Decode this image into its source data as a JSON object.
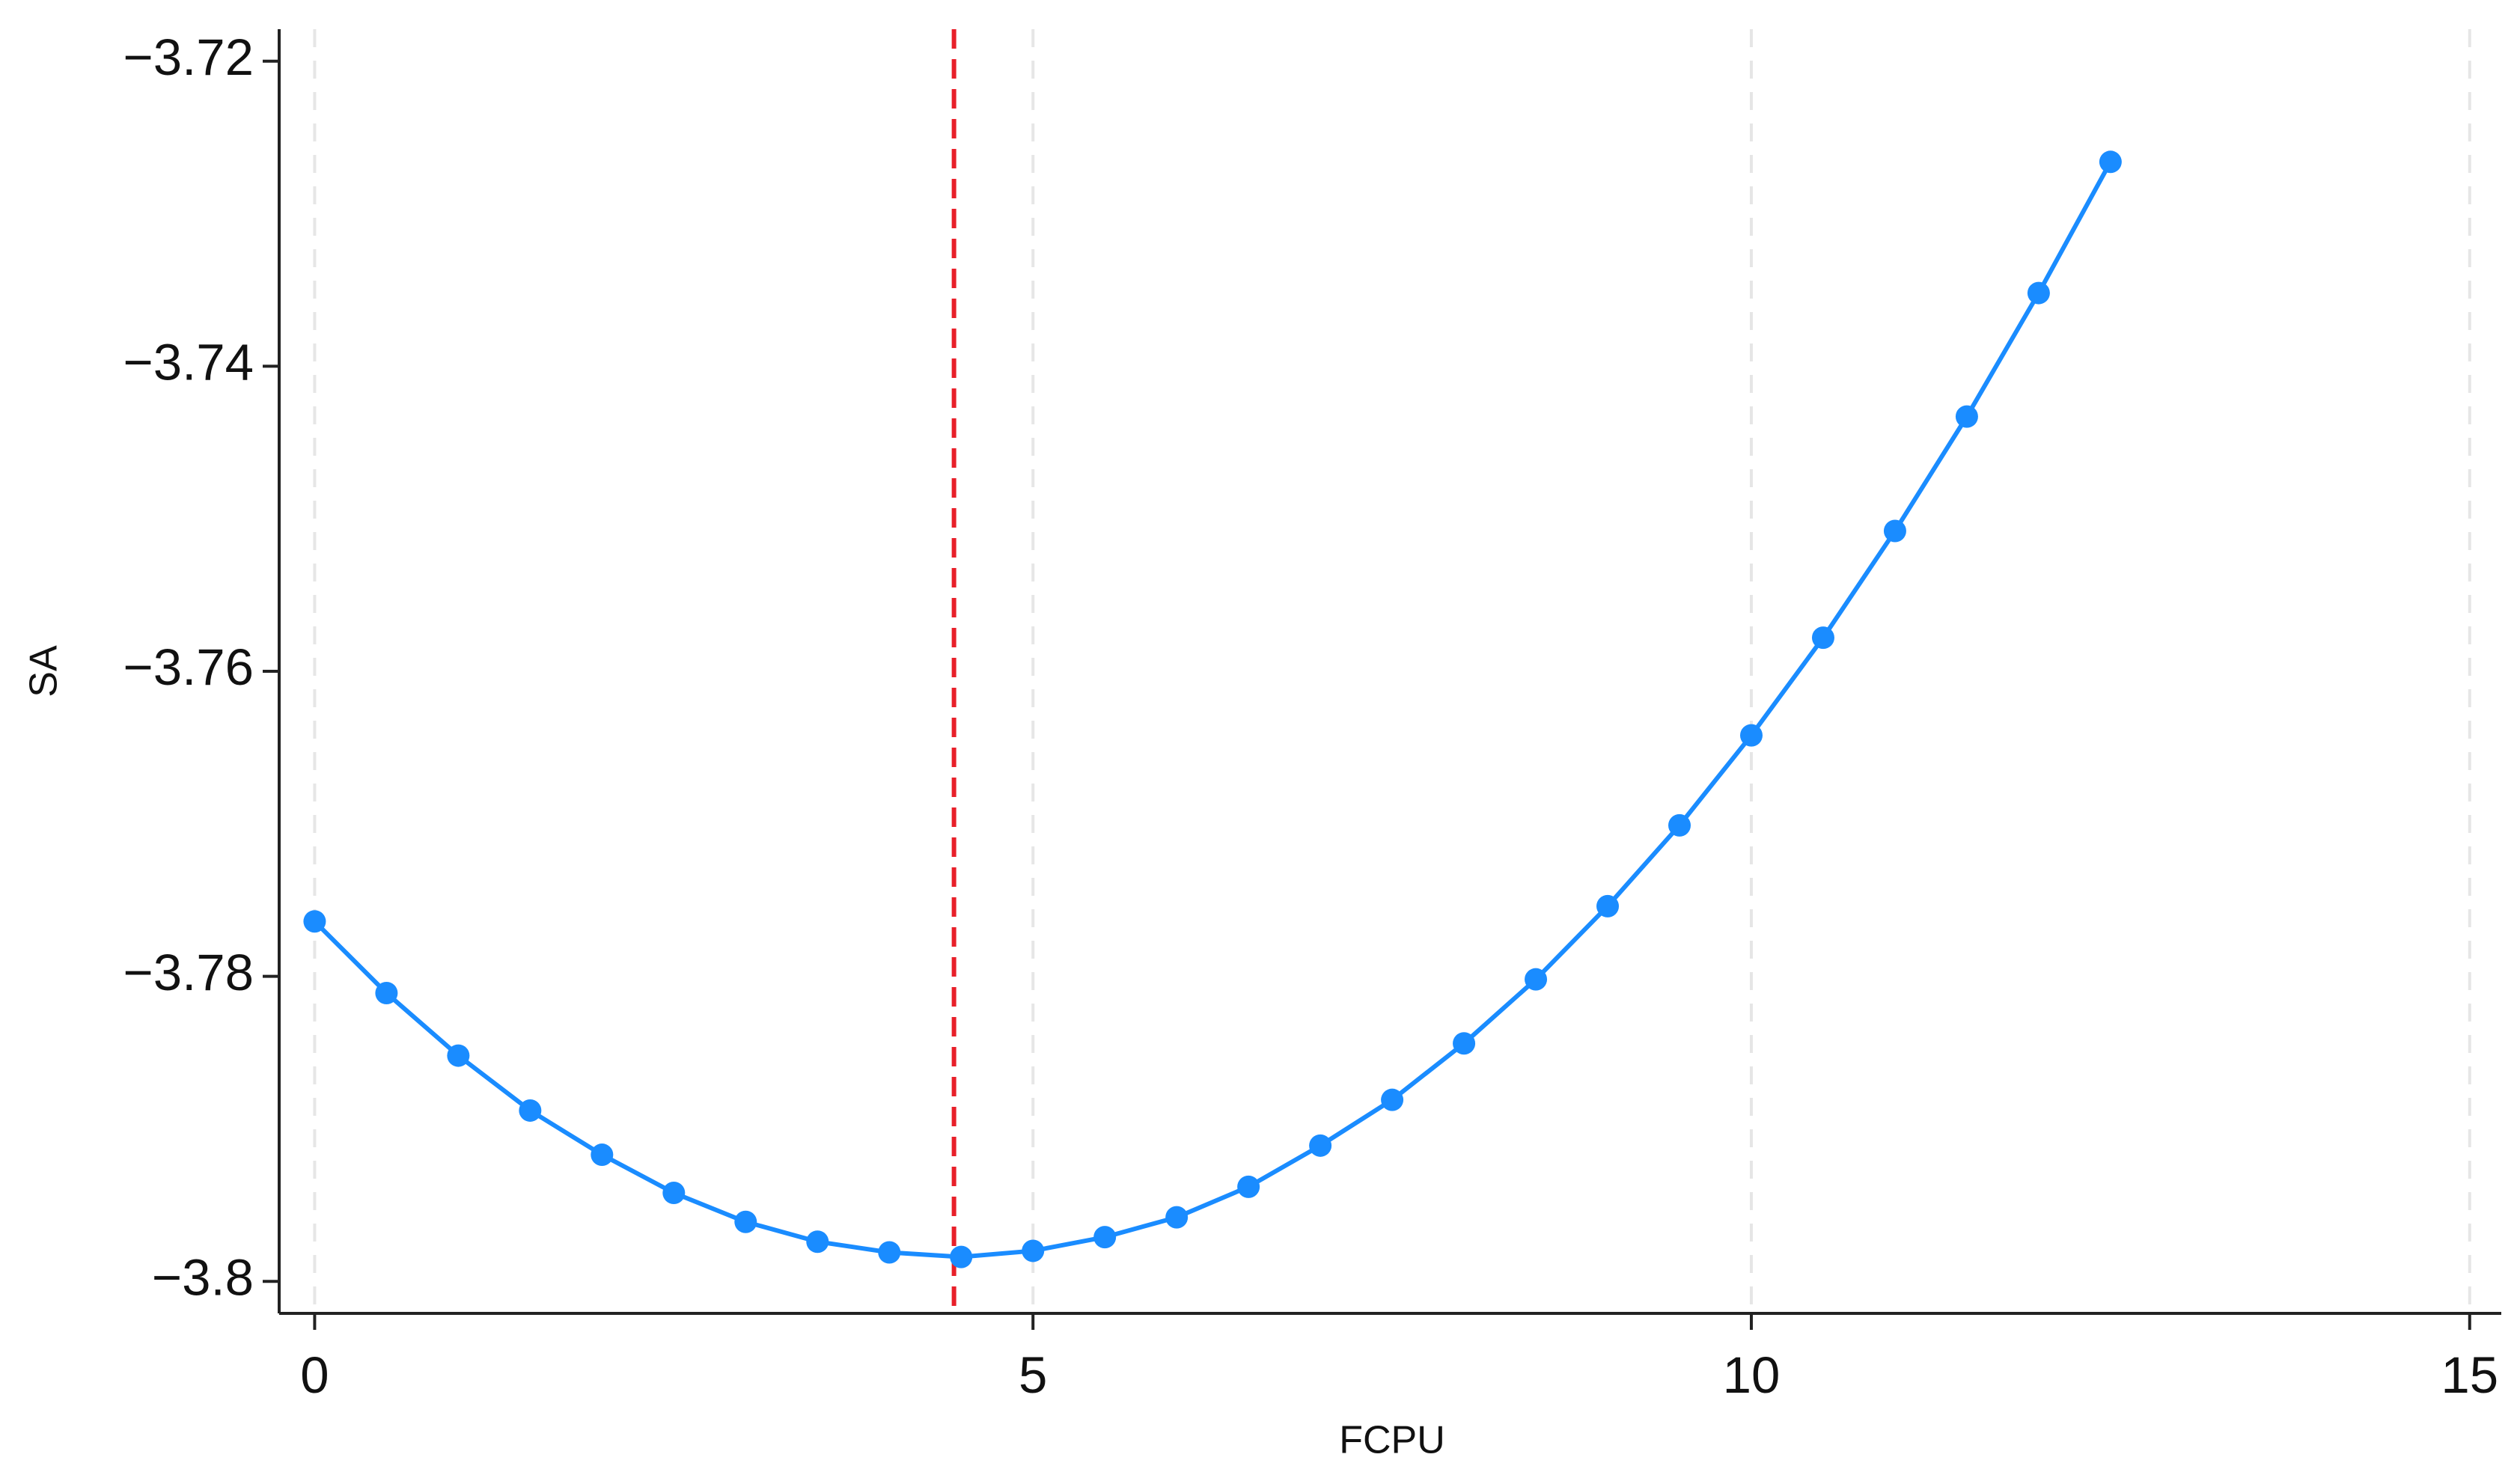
{
  "chart_data": {
    "type": "line",
    "x_label": "FCPU",
    "y_label": "SA",
    "x": [
      0,
      0.5,
      1,
      1.5,
      2,
      2.5,
      3,
      3.5,
      4,
      4.5,
      5,
      5.5,
      6,
      6.5,
      7,
      7.5,
      8,
      8.5,
      9,
      9.5,
      10,
      10.5,
      11,
      11.5,
      12,
      12.5
    ],
    "series": [
      {
        "color": "#1a8cff",
        "values": [
          -3.7764,
          -3.7811,
          -3.7852,
          -3.7888,
          -3.7917,
          -3.7942,
          -3.7961,
          -3.7974,
          -3.7981,
          -3.7984,
          -3.798,
          -3.7971,
          -3.7958,
          -3.7938,
          -3.7911,
          -3.7881,
          -3.7844,
          -3.7802,
          -3.7754,
          -3.7701,
          -3.7642,
          -3.7578,
          -3.7508,
          -3.7433,
          -3.7352,
          -3.7266
        ]
      }
    ],
    "xlim": [
      -0.247,
      15.22
    ],
    "ylim": [
      -3.8021,
      -3.7179
    ],
    "xticks": [
      0,
      5,
      10,
      15
    ],
    "yticks": [
      {
        "value": -3.72,
        "label": "−3.72"
      },
      {
        "value": -3.74,
        "label": "−3.74"
      },
      {
        "value": -3.76,
        "label": "−3.76"
      },
      {
        "value": -3.78,
        "label": "−3.78"
      },
      {
        "value": -3.8,
        "label": "−3.8"
      }
    ],
    "vline": {
      "value": 4.45,
      "color": "#e8202a"
    },
    "grid": "x",
    "grid_color": "#e6e6e6"
  }
}
